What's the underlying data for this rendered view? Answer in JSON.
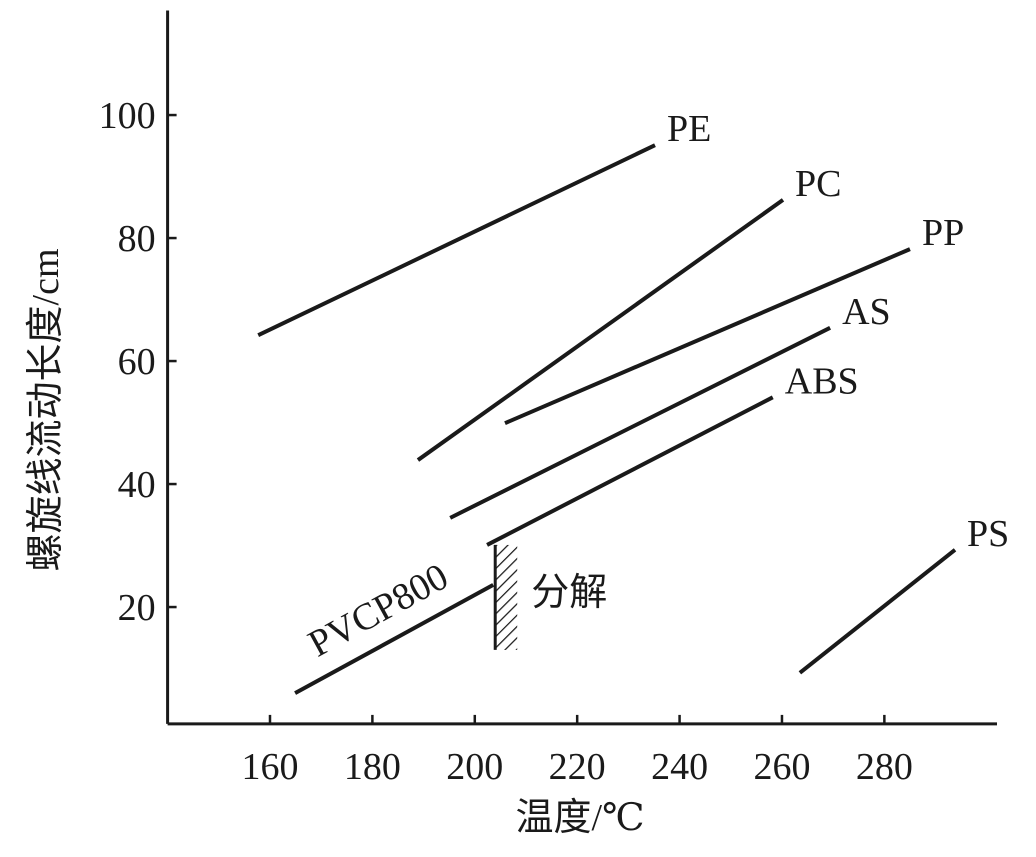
{
  "chart_data": {
    "type": "line",
    "x_label": "温度/℃",
    "y_label": "螺旋线流动长度/cm",
    "annotation": "分解",
    "xlim": [
      140,
      302
    ],
    "ylim": [
      1,
      117
    ],
    "xticks": [
      160,
      180,
      200,
      220,
      240,
      260,
      280
    ],
    "yticks": [
      20,
      40,
      60,
      80,
      100
    ],
    "color": "#1a1a1a",
    "series": [
      {
        "name": "PE",
        "x": [
          157.7,
          235.2
        ],
        "values": [
          64.2,
          95.1
        ]
      },
      {
        "name": "PC",
        "x": [
          188.9,
          260.2
        ],
        "values": [
          43.9,
          86.2
        ]
      },
      {
        "name": "PP",
        "x": [
          205.9,
          285.0
        ],
        "values": [
          49.9,
          78.2
        ]
      },
      {
        "name": "AS",
        "x": [
          195.2,
          269.4
        ],
        "values": [
          34.5,
          65.4
        ]
      },
      {
        "name": "ABS",
        "x": [
          202.4,
          258.2
        ],
        "values": [
          30.1,
          54.1
        ]
      },
      {
        "name": "PVCP800",
        "x": [
          164.9,
          203.6
        ],
        "values": [
          6.0,
          23.6
        ]
      },
      {
        "name": "PS",
        "x": [
          263.5,
          293.8
        ],
        "values": [
          9.3,
          29.3
        ]
      }
    ]
  }
}
